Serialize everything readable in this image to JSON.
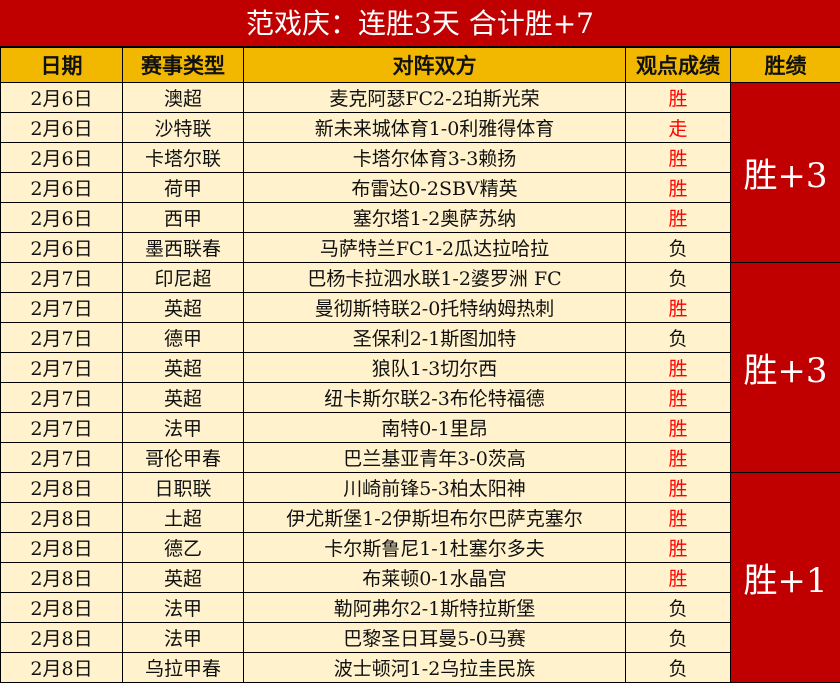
{
  "title": "范戏庆：连胜3天 合计胜+7",
  "colors": {
    "title_bg": "#c00000",
    "header_bg": "#f2b800",
    "cell_bg": "#fff2cc",
    "win_text": "#ff0000",
    "summary_bg": "#c00000"
  },
  "headers": [
    "日期",
    "赛事类型",
    "对阵双方",
    "观点成绩",
    "胜绩"
  ],
  "rows": [
    {
      "date": "2月6日",
      "league": "澳超",
      "match": "麦克阿瑟FC2-2珀斯光荣",
      "result": "胜"
    },
    {
      "date": "2月6日",
      "league": "沙特联",
      "match": "新未来城体育1-0利雅得体育",
      "result": "走"
    },
    {
      "date": "2月6日",
      "league": "卡塔尔联",
      "match": "卡塔尔体育3-3赖扬",
      "result": "胜"
    },
    {
      "date": "2月6日",
      "league": "荷甲",
      "match": "布雷达0-2SBV精英",
      "result": "胜"
    },
    {
      "date": "2月6日",
      "league": "西甲",
      "match": "塞尔塔1-2奥萨苏纳",
      "result": "胜"
    },
    {
      "date": "2月6日",
      "league": "墨西联春",
      "match": "马萨特兰FC1-2瓜达拉哈拉",
      "result": "负"
    },
    {
      "date": "2月7日",
      "league": "印尼超",
      "match": "巴杨卡拉泗水联1-2婆罗洲 FC",
      "result": "负"
    },
    {
      "date": "2月7日",
      "league": "英超",
      "match": "曼彻斯特联2-0托特纳姆热刺",
      "result": "胜"
    },
    {
      "date": "2月7日",
      "league": "德甲",
      "match": "圣保利2-1斯图加特",
      "result": "负"
    },
    {
      "date": "2月7日",
      "league": "英超",
      "match": "狼队1-3切尔西",
      "result": "胜"
    },
    {
      "date": "2月7日",
      "league": "英超",
      "match": "纽卡斯尔联2-3布伦特福德",
      "result": "胜"
    },
    {
      "date": "2月7日",
      "league": "法甲",
      "match": "南特0-1里昂",
      "result": "胜"
    },
    {
      "date": "2月7日",
      "league": "哥伦甲春",
      "match": "巴兰基亚青年3-0茨高",
      "result": "胜"
    },
    {
      "date": "2月8日",
      "league": "日职联",
      "match": "川崎前锋5-3柏太阳神",
      "result": "胜"
    },
    {
      "date": "2月8日",
      "league": "土超",
      "match": "伊尤斯堡1-2伊斯坦布尔巴萨克塞尔",
      "result": "胜"
    },
    {
      "date": "2月8日",
      "league": "德乙",
      "match": "卡尔斯鲁尼1-1杜塞尔多夫",
      "result": "胜"
    },
    {
      "date": "2月8日",
      "league": "英超",
      "match": "布莱顿0-1水晶宫",
      "result": "胜"
    },
    {
      "date": "2月8日",
      "league": "法甲",
      "match": "勒阿弗尔2-1斯特拉斯堡",
      "result": "负"
    },
    {
      "date": "2月8日",
      "league": "法甲",
      "match": "巴黎圣日耳曼5-0马赛",
      "result": "负"
    },
    {
      "date": "2月8日",
      "league": "乌拉甲春",
      "match": "波士顿河1-2乌拉圭民族",
      "result": "负"
    }
  ],
  "summaries": [
    {
      "label": "胜+3",
      "span": 6
    },
    {
      "label": "胜+3",
      "span": 7
    },
    {
      "label": "胜+1",
      "span": 7
    }
  ]
}
